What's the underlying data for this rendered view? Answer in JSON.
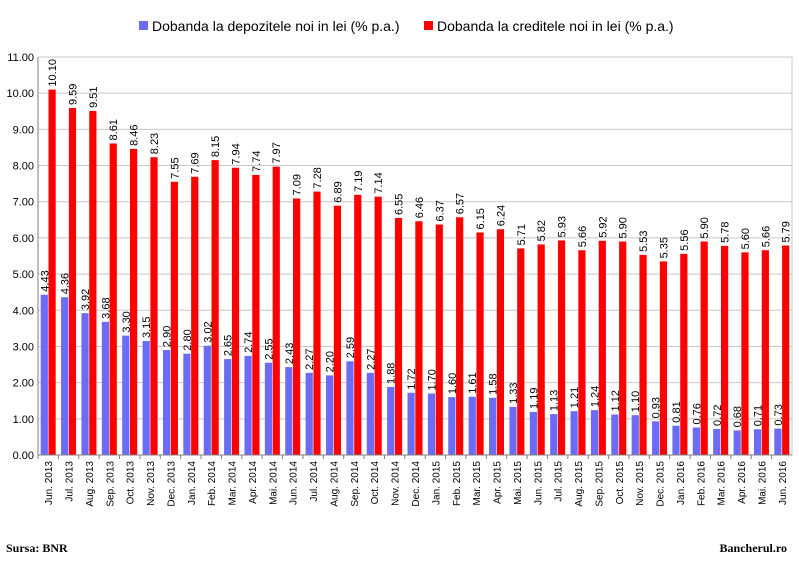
{
  "chart_data": {
    "type": "bar",
    "title": "",
    "xlabel": "",
    "ylabel": "",
    "ylim": [
      0,
      11
    ],
    "yticks": [
      "0.00",
      "1.00",
      "2.00",
      "3.00",
      "4.00",
      "5.00",
      "6.00",
      "7.00",
      "8.00",
      "9.00",
      "10.00",
      "11.00"
    ],
    "grid": true,
    "legend_position": "top",
    "categories": [
      "Jun. 2013",
      "Jul. 2013",
      "Aug. 2013",
      "Sep. 2013",
      "Oct. 2013",
      "Nov. 2013",
      "Dec. 2013",
      "Jan. 2014",
      "Feb. 2014",
      "Mar. 2014",
      "Apr. 2014",
      "Mai. 2014",
      "Jun. 2014",
      "Jul. 2014",
      "Aug. 2014",
      "Sep. 2014",
      "Oct. 2014",
      "Nov. 2014",
      "Dec. 2014",
      "Jan. 2015",
      "Feb. 2015",
      "Mar. 2015",
      "Apr. 2015",
      "Mai. 2015",
      "Jun. 2015",
      "Jul. 2015",
      "Aug. 2015",
      "Sep. 2015",
      "Oct. 2015",
      "Nov. 2015",
      "Dec. 2015",
      "Jan. 2016",
      "Feb. 2016",
      "Mar. 2016",
      "Apr. 2016",
      "Mai. 2016",
      "Jun. 2016"
    ],
    "series": [
      {
        "name": "Dobanda la depozitele noi in lei (% p.a.)",
        "color": "#6b6bf5",
        "values": [
          4.43,
          4.36,
          3.92,
          3.68,
          3.3,
          3.15,
          2.9,
          2.8,
          3.02,
          2.65,
          2.74,
          2.55,
          2.43,
          2.27,
          2.2,
          2.59,
          2.27,
          1.88,
          1.72,
          1.7,
          1.6,
          1.61,
          1.58,
          1.33,
          1.19,
          1.13,
          1.21,
          1.24,
          1.12,
          1.1,
          0.93,
          0.81,
          0.76,
          0.72,
          0.68,
          0.71,
          0.73
        ],
        "labels": [
          "4.43",
          "4.36",
          "3.92",
          "3.68",
          "3.30",
          "3.15",
          "2.90",
          "2.80",
          "3.02",
          "2.65",
          "2.74",
          "2.55",
          "2.43",
          "2.27",
          "2.20",
          "2.59",
          "2.27",
          "1.88",
          "1.72",
          "1.70",
          "1.60",
          "1.61",
          "1.58",
          "1.33",
          "1.19",
          "1.13",
          "1.21",
          "1.24",
          "1.12",
          "1.10",
          "0.93",
          "0.81",
          "0.76",
          "0.72",
          "0.68",
          "0.71",
          "0.73"
        ]
      },
      {
        "name": "Dobanda la creditele noi in lei (% p.a.)",
        "color": "#ff0000",
        "values": [
          10.1,
          9.59,
          9.51,
          8.61,
          8.46,
          8.23,
          7.55,
          7.69,
          8.15,
          7.94,
          7.74,
          7.97,
          7.09,
          7.28,
          6.89,
          7.19,
          7.14,
          6.55,
          6.46,
          6.37,
          6.57,
          6.15,
          6.24,
          5.71,
          5.82,
          5.93,
          5.66,
          5.92,
          5.9,
          5.53,
          5.35,
          5.56,
          5.9,
          5.78,
          5.6,
          5.66,
          5.79
        ],
        "labels": [
          "10.10",
          "9.59",
          "9.51",
          "8.61",
          "8.46",
          "8.23",
          "7.55",
          "7.69",
          "8.15",
          "7.94",
          "7.74",
          "7.97",
          "7.09",
          "7.28",
          "6.89",
          "7.19",
          "7.14",
          "6.55",
          "6.46",
          "6.37",
          "6.57",
          "6.15",
          "6.24",
          "5.71",
          "5.82",
          "5.93",
          "5.66",
          "5.92",
          "5.90",
          "5.53",
          "5.35",
          "5.56",
          "5.90",
          "5.78",
          "5.60",
          "5.66",
          "5.79"
        ]
      }
    ]
  },
  "footer": {
    "source": "Sursa: BNR",
    "brand": "Bancherul.ro"
  }
}
